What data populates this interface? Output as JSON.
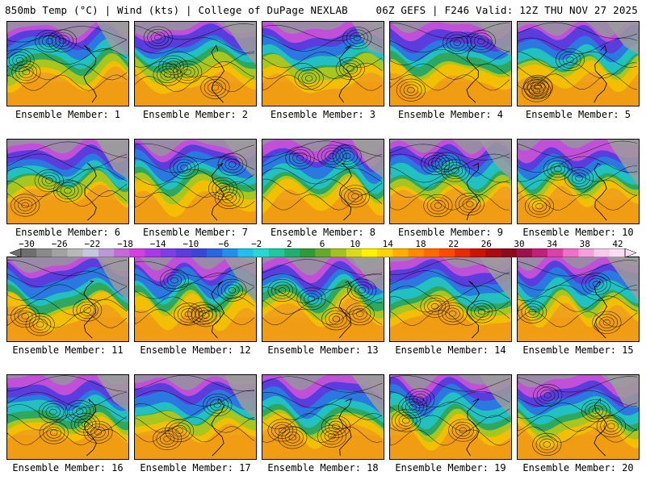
{
  "header": {
    "left": "850mb Temp (°C) | Wind (kts) | College of DuPage NEXLAB",
    "right": "06Z GEFS | F246 Valid: 12Z THU NOV 27 2025"
  },
  "colorbar": {
    "tick_labels": [
      "−30",
      "−26",
      "−22",
      "−18",
      "−14",
      "−10",
      "−6",
      "−2",
      "2",
      "6",
      "10",
      "14",
      "18",
      "22",
      "26",
      "30",
      "34",
      "38",
      "42"
    ],
    "colors": [
      "#6f6f6f",
      "#8a8a8a",
      "#a2a2a2",
      "#b8b8b8",
      "#c6c6dc",
      "#b99ad6",
      "#c46ad8",
      "#d43fe0",
      "#a838e8",
      "#7f3de6",
      "#5b3ddc",
      "#3a46d8",
      "#2a66e0",
      "#228fe8",
      "#21c0ea",
      "#27d8d0",
      "#1ec8a0",
      "#1fb070",
      "#2e9a3a",
      "#68a82c",
      "#a2c21f",
      "#d8dc1a",
      "#fff200",
      "#ffd400",
      "#ffae00",
      "#ff8a00",
      "#ff6a00",
      "#ff4a00",
      "#e82a00",
      "#cc1400",
      "#aa0a10",
      "#8c0a1a",
      "#a0104a",
      "#c0207a",
      "#dd40a8",
      "#ee70c8",
      "#f4a0dc",
      "#f7c8ea",
      "#faddf2"
    ],
    "units_range": [
      -30,
      42
    ]
  },
  "members": [
    {
      "label": "Ensemble Member: 1"
    },
    {
      "label": "Ensemble Member: 2"
    },
    {
      "label": "Ensemble Member: 3"
    },
    {
      "label": "Ensemble Member: 4"
    },
    {
      "label": "Ensemble Member: 5"
    },
    {
      "label": "Ensemble Member: 6"
    },
    {
      "label": "Ensemble Member: 7"
    },
    {
      "label": "Ensemble Member: 8"
    },
    {
      "label": "Ensemble Member: 9"
    },
    {
      "label": "Ensemble Member: 10"
    },
    {
      "label": "Ensemble Member: 11"
    },
    {
      "label": "Ensemble Member: 12"
    },
    {
      "label": "Ensemble Member: 13"
    },
    {
      "label": "Ensemble Member: 14"
    },
    {
      "label": "Ensemble Member: 15"
    },
    {
      "label": "Ensemble Member: 16"
    },
    {
      "label": "Ensemble Member: 17"
    },
    {
      "label": "Ensemble Member: 18"
    },
    {
      "label": "Ensemble Member: 19"
    },
    {
      "label": "Ensemble Member: 20"
    }
  ]
}
